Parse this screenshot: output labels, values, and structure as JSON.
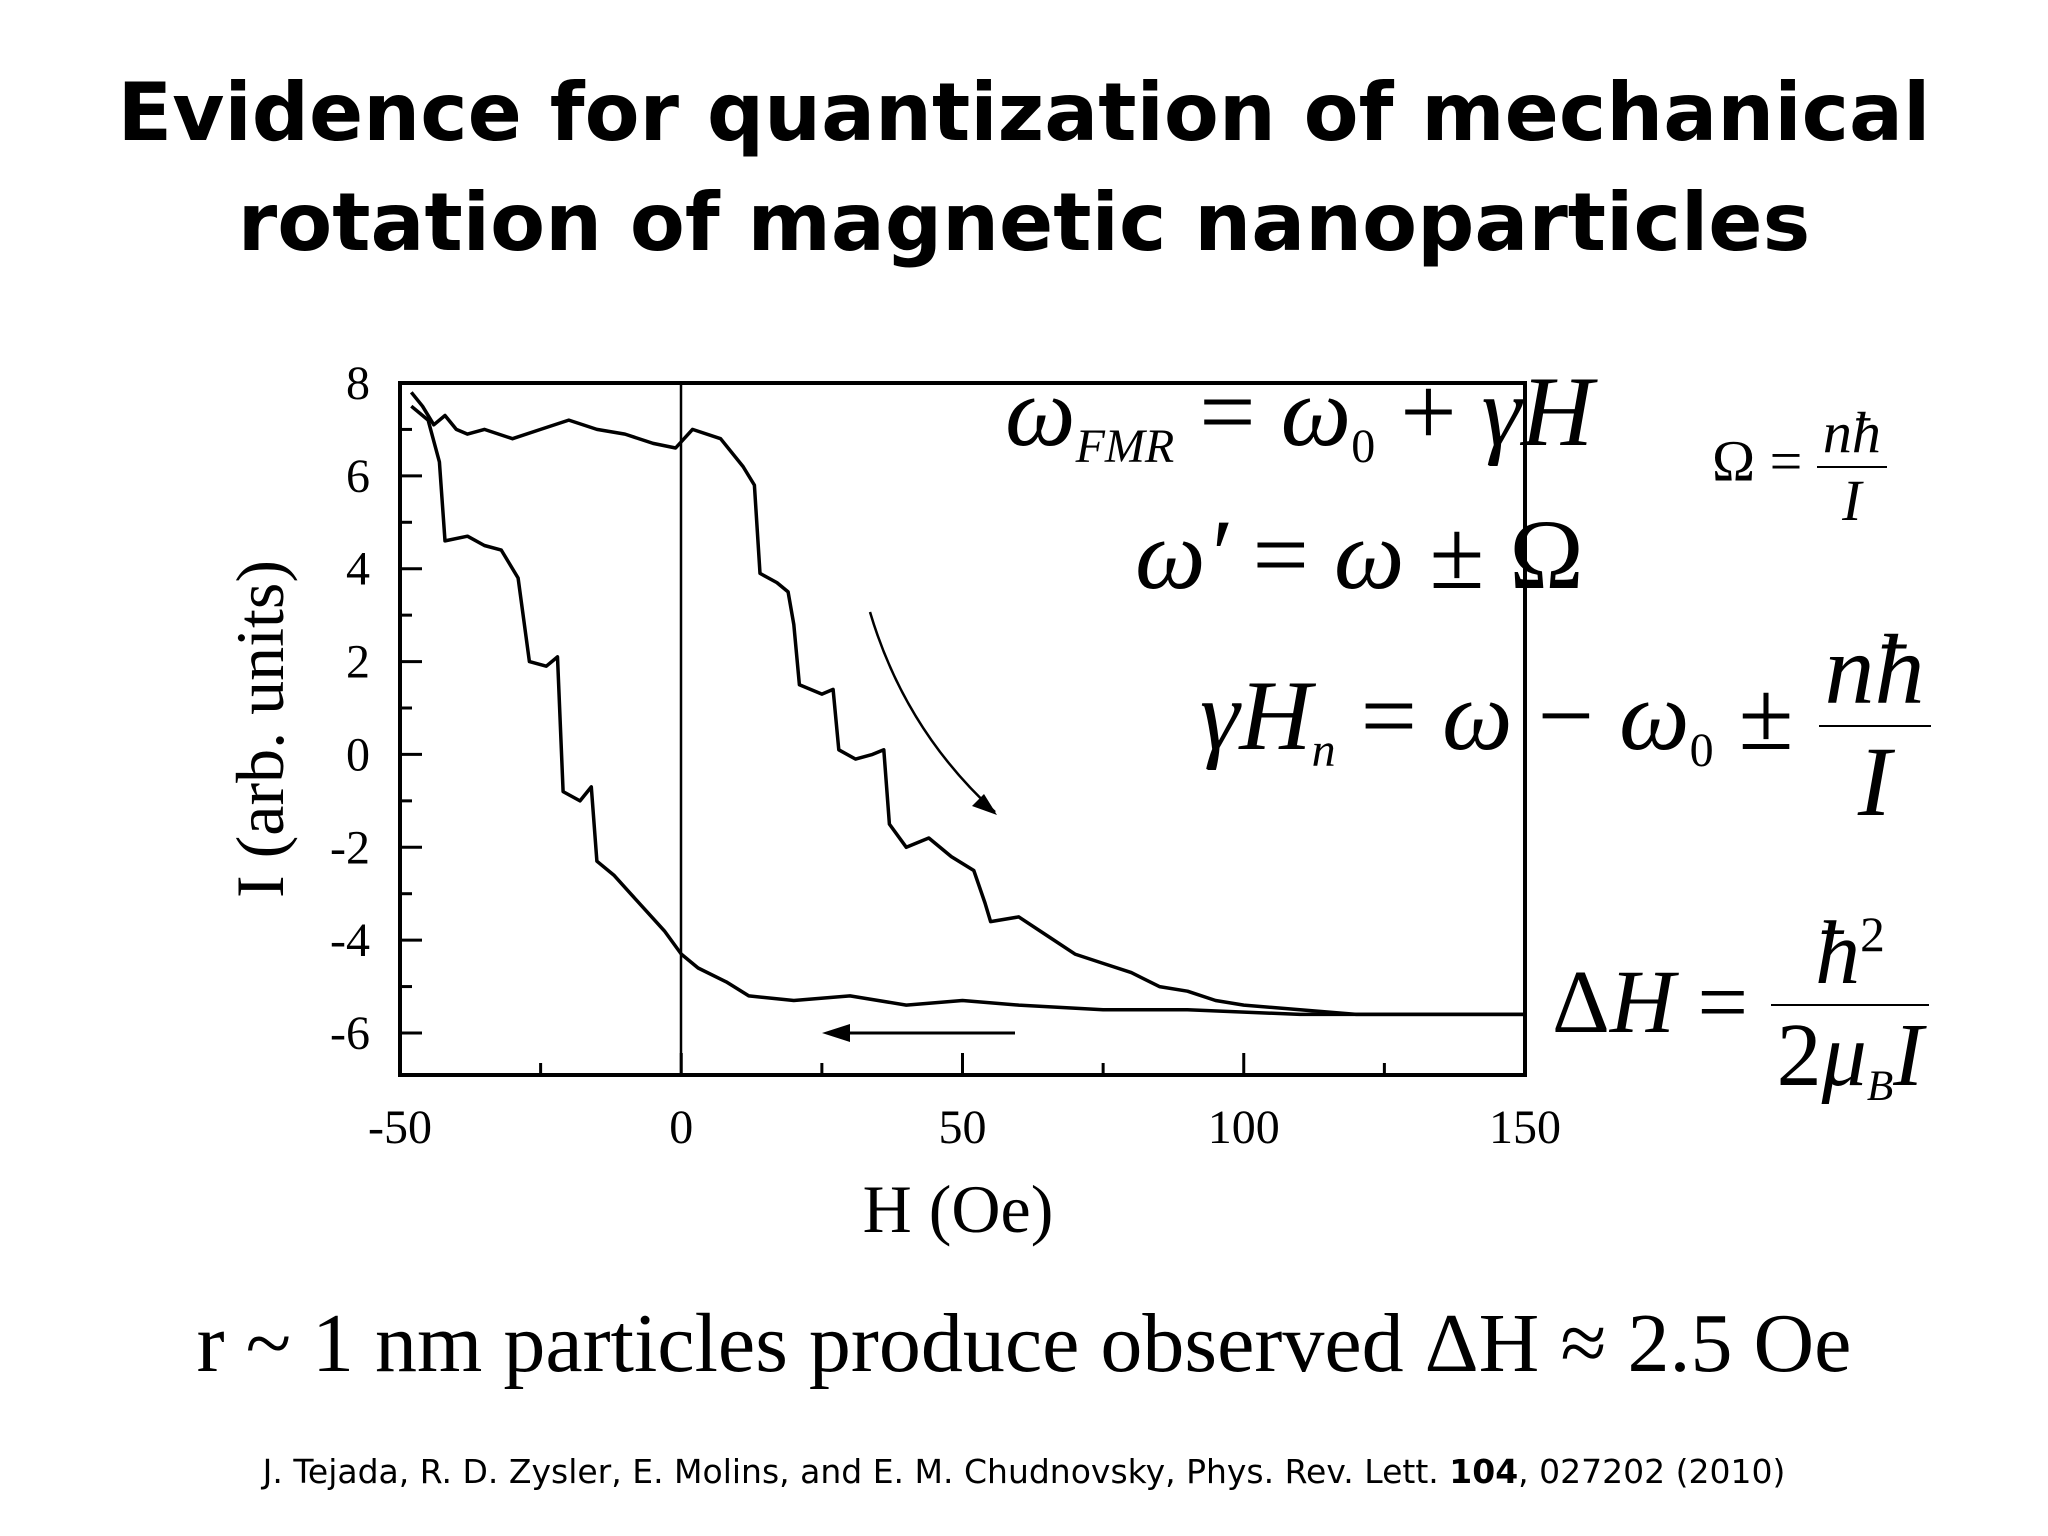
{
  "slide": {
    "title_line1": "Evidence for quantization of mechanical",
    "title_line2": "rotation of magnetic nanoparticles",
    "summary": "r ~ 1 nm particles produce observed ΔH ≈ 2.5 Oe",
    "citation": {
      "before": "J. Tejada, R. D. Zysler, E. Molins, and E. M. Chudnovsky, Phys. Rev. Lett. ",
      "volume": "104",
      "after": ", 027202 (2010)"
    }
  },
  "equations": {
    "fmr": "ω_FMR = ω_0 + γH",
    "shift": "ω′ = ω ± Ω",
    "omega": "Ω = nħ / I",
    "resonance": "γH_n = ω − ω_0 ± nħ / I",
    "delta": "ΔH = ħ² / 2μ_B I"
  },
  "chart_data": {
    "type": "line",
    "title": "",
    "xlabel": "H (Oe)",
    "ylabel": "I (arb. units)",
    "xlim": [
      -50,
      150
    ],
    "ylim": [
      -7,
      8
    ],
    "xticks": [
      -50,
      0,
      50,
      100,
      150
    ],
    "yticks": [
      8,
      6,
      4,
      2,
      0,
      -2,
      -4,
      -6
    ],
    "xtick_labels": [
      "-50",
      "0",
      "50",
      "100",
      "150"
    ],
    "ytick_labels": [
      "8",
      "6",
      "4",
      "2",
      "0",
      "-2",
      "-4",
      "-6"
    ],
    "grid": false,
    "series": [
      {
        "points": [
          [
            -48,
            7.8
          ],
          [
            -46,
            7.5
          ],
          [
            -44,
            7.1
          ],
          [
            -42,
            7.3
          ],
          [
            -40,
            7.0
          ],
          [
            -38,
            6.9
          ],
          [
            -35,
            7.0
          ],
          [
            -30,
            6.8
          ],
          [
            -25,
            7.0
          ],
          [
            -20,
            7.2
          ],
          [
            -15,
            7.0
          ],
          [
            -10,
            6.9
          ],
          [
            -5,
            6.7
          ],
          [
            -1,
            6.6
          ],
          [
            2,
            7.0
          ],
          [
            7,
            6.8
          ],
          [
            11,
            6.2
          ],
          [
            13,
            5.8
          ],
          [
            14,
            3.9
          ],
          [
            17,
            3.7
          ],
          [
            19,
            3.5
          ],
          [
            20,
            2.8
          ],
          [
            21,
            1.5
          ],
          [
            25,
            1.3
          ],
          [
            27,
            1.4
          ],
          [
            28,
            0.1
          ],
          [
            31,
            -0.1
          ],
          [
            34,
            0.0
          ],
          [
            36,
            0.1
          ],
          [
            37,
            -1.5
          ],
          [
            40,
            -2.0
          ],
          [
            44,
            -1.8
          ],
          [
            48,
            -2.2
          ],
          [
            52,
            -2.5
          ],
          [
            54,
            -3.2
          ],
          [
            55,
            -3.6
          ],
          [
            60,
            -3.5
          ],
          [
            65,
            -3.9
          ],
          [
            70,
            -4.3
          ],
          [
            75,
            -4.5
          ],
          [
            80,
            -4.7
          ],
          [
            85,
            -5.0
          ],
          [
            90,
            -5.1
          ],
          [
            95,
            -5.3
          ],
          [
            100,
            -5.4
          ],
          [
            110,
            -5.5
          ],
          [
            120,
            -5.6
          ],
          [
            130,
            -5.6
          ],
          [
            140,
            -5.6
          ],
          [
            150,
            -5.6
          ]
        ]
      },
      {
        "points": [
          [
            -48,
            7.5
          ],
          [
            -45,
            7.2
          ],
          [
            -43,
            6.3
          ],
          [
            -42,
            4.6
          ],
          [
            -38,
            4.7
          ],
          [
            -35,
            4.5
          ],
          [
            -32,
            4.4
          ],
          [
            -29,
            3.8
          ],
          [
            -27,
            2.0
          ],
          [
            -24,
            1.9
          ],
          [
            -22,
            2.1
          ],
          [
            -21,
            -0.8
          ],
          [
            -18,
            -1.0
          ],
          [
            -16,
            -0.7
          ],
          [
            -15,
            -2.3
          ],
          [
            -12,
            -2.6
          ],
          [
            -9,
            -3.0
          ],
          [
            -6,
            -3.4
          ],
          [
            -3,
            -3.8
          ],
          [
            0,
            -4.3
          ],
          [
            3,
            -4.6
          ],
          [
            8,
            -4.9
          ],
          [
            12,
            -5.2
          ],
          [
            20,
            -5.3
          ],
          [
            30,
            -5.2
          ],
          [
            40,
            -5.4
          ],
          [
            50,
            -5.3
          ],
          [
            60,
            -5.4
          ],
          [
            75,
            -5.5
          ],
          [
            90,
            -5.5
          ],
          [
            110,
            -5.6
          ],
          [
            130,
            -5.6
          ],
          [
            150,
            -5.6
          ]
        ]
      }
    ],
    "annotations": [
      "arrow down-right along upper branch",
      "arrow pointing left under lower branch"
    ]
  }
}
